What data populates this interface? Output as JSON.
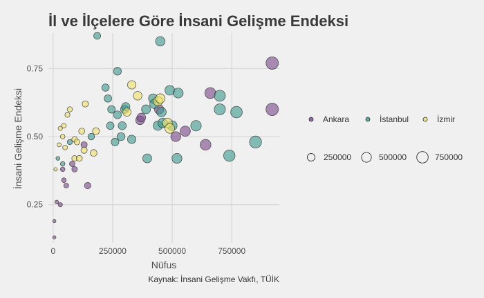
{
  "chart_data": {
    "type": "scatter",
    "title": "İl ve İlçelere Göre İnsani Gelişme Endeksi",
    "xlabel": "Nüfus",
    "ylabel": "İnsani Gelişme Endeksi",
    "caption": "Kaynak: İnsani Gelişme Vakfı, TÜİK",
    "xlim": [
      -20000,
      950000
    ],
    "ylim": [
      0.11,
      0.88
    ],
    "xticks": [
      0,
      250000,
      500000,
      750000
    ],
    "xtick_labels": [
      "0",
      "250000",
      "500000",
      "750000"
    ],
    "yticks": [
      0.25,
      0.5,
      0.75
    ],
    "ytick_labels": [
      "0.25",
      "0.50",
      "0.75"
    ],
    "grid": true,
    "legend_position": "right",
    "size_legend": {
      "values": [
        250000,
        500000,
        750000
      ],
      "labels": [
        "250000",
        "500000",
        "750000"
      ]
    },
    "series": [
      {
        "name": "Ankara",
        "color": "#7b4a8a",
        "points": [
          {
            "x": 5000,
            "y": 0.13
          },
          {
            "x": 5000,
            "y": 0.19
          },
          {
            "x": 15000,
            "y": 0.26
          },
          {
            "x": 30000,
            "y": 0.25
          },
          {
            "x": 40000,
            "y": 0.38
          },
          {
            "x": 45000,
            "y": 0.34
          },
          {
            "x": 55000,
            "y": 0.32
          },
          {
            "x": 80000,
            "y": 0.4
          },
          {
            "x": 90000,
            "y": 0.38
          },
          {
            "x": 130000,
            "y": 0.47
          },
          {
            "x": 145000,
            "y": 0.32
          },
          {
            "x": 365000,
            "y": 0.56
          },
          {
            "x": 370000,
            "y": 0.57
          },
          {
            "x": 445000,
            "y": 0.6
          },
          {
            "x": 515000,
            "y": 0.5
          },
          {
            "x": 555000,
            "y": 0.52
          },
          {
            "x": 640000,
            "y": 0.47
          },
          {
            "x": 660000,
            "y": 0.66
          },
          {
            "x": 920000,
            "y": 0.6
          },
          {
            "x": 920000,
            "y": 0.77
          }
        ]
      },
      {
        "name": "İstanbul",
        "color": "#3d9b8e",
        "points": [
          {
            "x": 20000,
            "y": 0.42
          },
          {
            "x": 40000,
            "y": 0.4
          },
          {
            "x": 70000,
            "y": 0.48
          },
          {
            "x": 160000,
            "y": 0.5
          },
          {
            "x": 185000,
            "y": 0.87
          },
          {
            "x": 220000,
            "y": 0.68
          },
          {
            "x": 230000,
            "y": 0.64
          },
          {
            "x": 240000,
            "y": 0.54
          },
          {
            "x": 245000,
            "y": 0.6
          },
          {
            "x": 260000,
            "y": 0.48
          },
          {
            "x": 270000,
            "y": 0.58
          },
          {
            "x": 270000,
            "y": 0.74
          },
          {
            "x": 285000,
            "y": 0.5
          },
          {
            "x": 290000,
            "y": 0.54
          },
          {
            "x": 300000,
            "y": 0.6
          },
          {
            "x": 305000,
            "y": 0.61
          },
          {
            "x": 330000,
            "y": 0.49
          },
          {
            "x": 390000,
            "y": 0.6
          },
          {
            "x": 395000,
            "y": 0.42
          },
          {
            "x": 420000,
            "y": 0.64
          },
          {
            "x": 425000,
            "y": 0.62
          },
          {
            "x": 440000,
            "y": 0.54
          },
          {
            "x": 450000,
            "y": 0.85
          },
          {
            "x": 455000,
            "y": 0.59
          },
          {
            "x": 460000,
            "y": 0.55
          },
          {
            "x": 490000,
            "y": 0.67
          },
          {
            "x": 500000,
            "y": 0.54
          },
          {
            "x": 520000,
            "y": 0.42
          },
          {
            "x": 525000,
            "y": 0.66
          },
          {
            "x": 600000,
            "y": 0.54
          },
          {
            "x": 700000,
            "y": 0.6
          },
          {
            "x": 700000,
            "y": 0.65
          },
          {
            "x": 740000,
            "y": 0.43
          },
          {
            "x": 770000,
            "y": 0.59
          },
          {
            "x": 850000,
            "y": 0.48
          }
        ]
      },
      {
        "name": "İzmir",
        "color": "#f0e26a",
        "points": [
          {
            "x": 10000,
            "y": 0.38
          },
          {
            "x": 25000,
            "y": 0.47
          },
          {
            "x": 30000,
            "y": 0.53
          },
          {
            "x": 40000,
            "y": 0.5
          },
          {
            "x": 45000,
            "y": 0.54
          },
          {
            "x": 50000,
            "y": 0.46
          },
          {
            "x": 60000,
            "y": 0.58
          },
          {
            "x": 70000,
            "y": 0.6
          },
          {
            "x": 90000,
            "y": 0.49
          },
          {
            "x": 90000,
            "y": 0.42
          },
          {
            "x": 100000,
            "y": 0.48
          },
          {
            "x": 110000,
            "y": 0.42
          },
          {
            "x": 120000,
            "y": 0.52
          },
          {
            "x": 130000,
            "y": 0.45
          },
          {
            "x": 135000,
            "y": 0.62
          },
          {
            "x": 170000,
            "y": 0.44
          },
          {
            "x": 180000,
            "y": 0.52
          },
          {
            "x": 310000,
            "y": 0.59
          },
          {
            "x": 330000,
            "y": 0.69
          },
          {
            "x": 355000,
            "y": 0.65
          },
          {
            "x": 440000,
            "y": 0.63
          },
          {
            "x": 450000,
            "y": 0.64
          },
          {
            "x": 480000,
            "y": 0.55
          },
          {
            "x": 490000,
            "y": 0.53
          }
        ]
      }
    ]
  }
}
